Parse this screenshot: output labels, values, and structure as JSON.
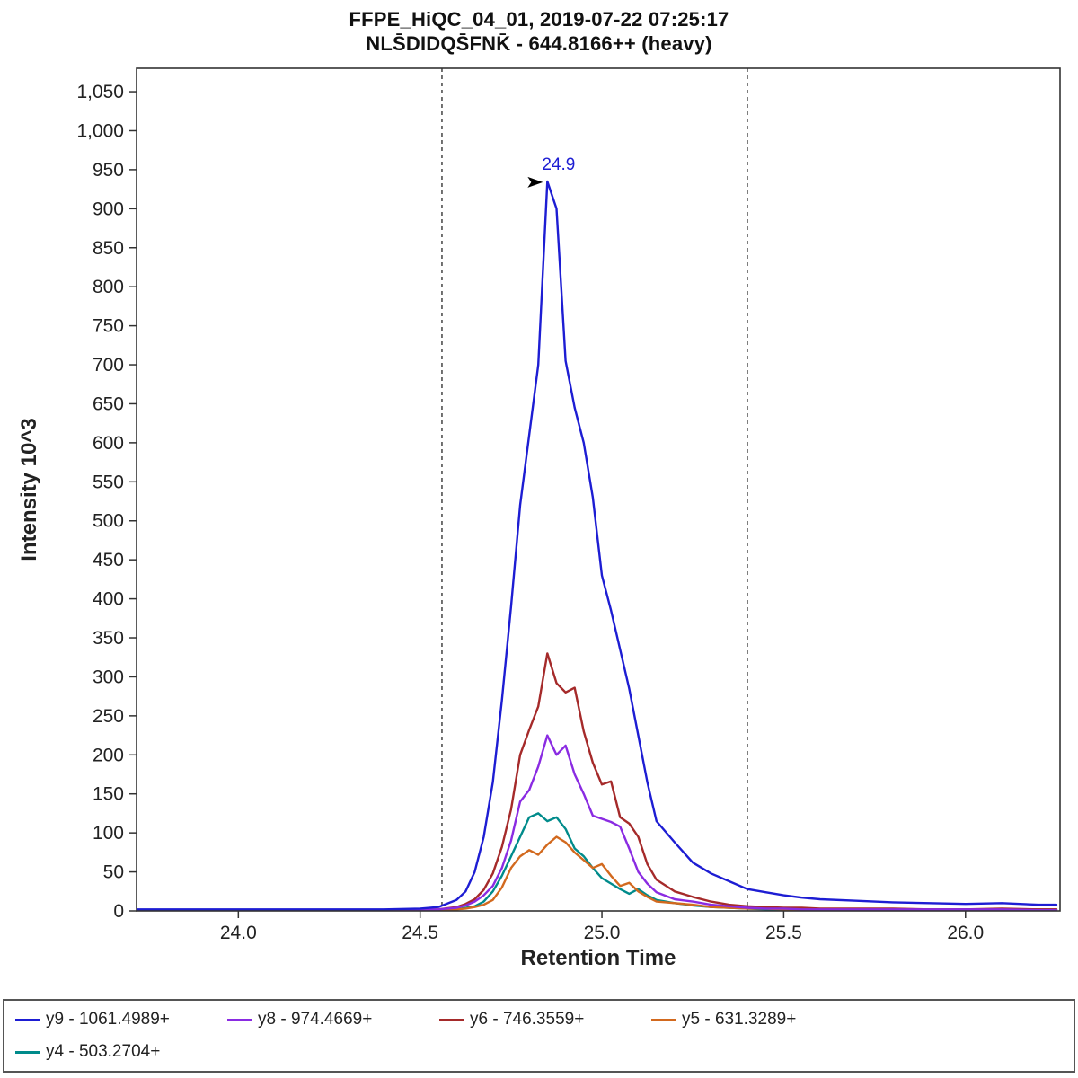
{
  "title": {
    "line1": "FFPE_HiQC_04_01, 2019-07-22 07:25:17",
    "line2": "NLS̄DIDQS̄FNK̄ - 644.8166++ (heavy)"
  },
  "chart_data": {
    "type": "line",
    "title": "FFPE_HiQC_04_01, 2019-07-22 07:25:17 / NLSDIDQSFNK - 644.8166++ (heavy)",
    "xlabel": "Retention Time",
    "ylabel": "Intensity 10^3",
    "xlim": [
      23.72,
      26.26
    ],
    "ylim": [
      0,
      1080
    ],
    "grid": false,
    "legend_position": "bottom",
    "x_ticks": [
      24.0,
      24.5,
      25.0,
      25.5,
      26.0
    ],
    "x_tick_labels": [
      "24.0",
      "24.5",
      "25.0",
      "25.5",
      "26.0"
    ],
    "y_ticks": [
      0,
      50,
      100,
      150,
      200,
      250,
      300,
      350,
      400,
      450,
      500,
      550,
      600,
      650,
      700,
      750,
      800,
      850,
      900,
      950,
      1000,
      1050
    ],
    "y_tick_labels": [
      "0",
      "50",
      "100",
      "150",
      "200",
      "250",
      "300",
      "350",
      "400",
      "450",
      "500",
      "550",
      "600",
      "650",
      "700",
      "750",
      "800",
      "850",
      "900",
      "950",
      "1,000",
      "1,050"
    ],
    "boundaries": [
      24.56,
      25.4
    ],
    "boundary_color": "#444444",
    "annotation": {
      "text": "24.9",
      "x": 24.85,
      "y": 935,
      "color": "#1d1dd3",
      "arrow_color": "#000000"
    },
    "x": [
      23.72,
      23.8,
      23.9,
      24.0,
      24.1,
      24.2,
      24.3,
      24.4,
      24.5,
      24.55,
      24.6,
      24.625,
      24.65,
      24.675,
      24.7,
      24.725,
      24.75,
      24.775,
      24.8,
      24.825,
      24.85,
      24.875,
      24.9,
      24.925,
      24.95,
      24.975,
      25.0,
      25.025,
      25.05,
      25.075,
      25.1,
      25.125,
      25.15,
      25.2,
      25.25,
      25.3,
      25.35,
      25.4,
      25.45,
      25.5,
      25.55,
      25.6,
      25.7,
      25.8,
      25.9,
      26.0,
      26.1,
      26.2,
      26.25
    ],
    "series": [
      {
        "id": "y9",
        "name": "y9 - 1061.4989+",
        "color": "#1d1dd3",
        "values": [
          2,
          2,
          2,
          2,
          2,
          2,
          2,
          2,
          3,
          5,
          14,
          25,
          50,
          95,
          165,
          270,
          390,
          520,
          610,
          700,
          935,
          900,
          705,
          645,
          600,
          530,
          430,
          385,
          335,
          285,
          225,
          165,
          115,
          88,
          62,
          48,
          38,
          28,
          24,
          20,
          17,
          15,
          13,
          11,
          10,
          9,
          10,
          8,
          8
        ]
      },
      {
        "id": "y8",
        "name": "y8 - 974.4669+",
        "color": "#8A2BE2",
        "values": [
          1,
          1,
          1,
          1,
          1,
          1,
          1,
          1,
          1,
          2,
          4,
          7,
          12,
          20,
          32,
          55,
          90,
          140,
          155,
          185,
          225,
          200,
          212,
          175,
          150,
          122,
          118,
          114,
          108,
          80,
          50,
          35,
          24,
          15,
          12,
          8,
          6,
          4,
          3,
          3,
          2,
          2,
          2,
          2,
          2,
          2,
          2,
          1,
          1
        ]
      },
      {
        "id": "y6",
        "name": "y6 - 746.3559+",
        "color": "#A52A2A",
        "values": [
          1,
          1,
          1,
          1,
          1,
          1,
          1,
          1,
          2,
          2,
          5,
          9,
          15,
          27,
          48,
          82,
          130,
          200,
          232,
          262,
          330,
          292,
          280,
          286,
          230,
          190,
          162,
          166,
          120,
          112,
          95,
          60,
          40,
          25,
          18,
          12,
          8,
          6,
          5,
          4,
          4,
          3,
          3,
          3,
          2,
          2,
          3,
          2,
          2
        ]
      },
      {
        "id": "y5",
        "name": "y5 - 631.3289+",
        "color": "#D2691E",
        "values": [
          1,
          1,
          1,
          1,
          1,
          1,
          1,
          1,
          1,
          1,
          2,
          3,
          5,
          8,
          14,
          30,
          55,
          70,
          78,
          72,
          85,
          95,
          88,
          75,
          65,
          55,
          60,
          45,
          32,
          36,
          25,
          18,
          12,
          10,
          8,
          5,
          4,
          3,
          3,
          2,
          2,
          2,
          2,
          2,
          2,
          2,
          2,
          2,
          2
        ]
      },
      {
        "id": "y4",
        "name": "y4 - 503.2704+",
        "color": "#008B8B",
        "values": [
          1,
          1,
          1,
          1,
          1,
          1,
          1,
          1,
          1,
          1,
          2,
          4,
          6,
          12,
          25,
          45,
          70,
          95,
          120,
          125,
          115,
          120,
          105,
          80,
          70,
          55,
          42,
          35,
          28,
          22,
          28,
          20,
          14,
          10,
          7,
          5,
          4,
          3,
          2,
          2,
          2,
          2,
          2,
          2,
          2,
          2,
          2,
          2,
          2
        ]
      }
    ]
  }
}
